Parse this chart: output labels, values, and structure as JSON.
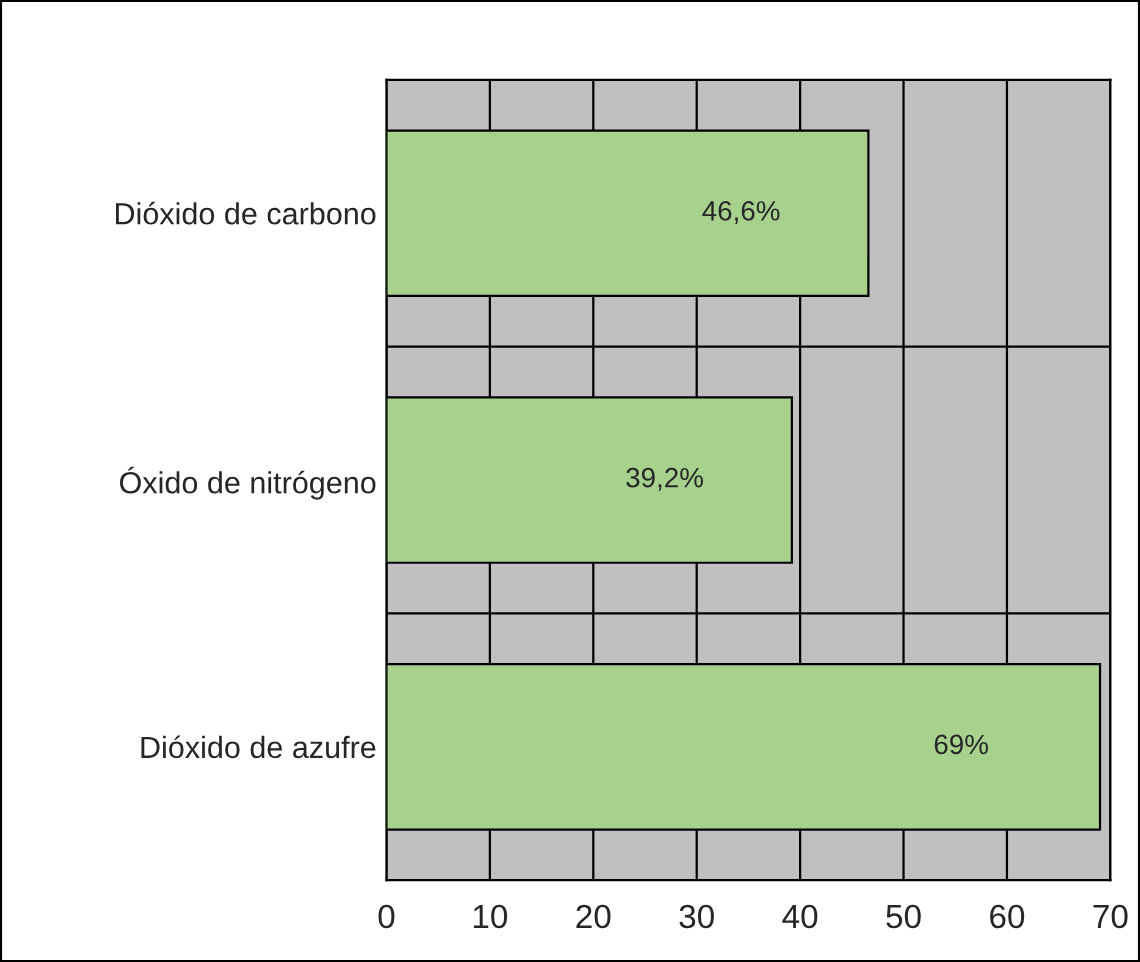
{
  "chart_data": {
    "type": "bar",
    "orientation": "horizontal",
    "categories": [
      "Dióxido de carbono",
      "Óxido de nitrógeno",
      "Dióxido de azufre"
    ],
    "values": [
      46.6,
      39.2,
      69
    ],
    "value_labels": [
      "46,6%",
      "39,2%",
      "69%"
    ],
    "color": "#a9d18e",
    "xlim": [
      0,
      70
    ],
    "xticks": [
      0,
      10,
      20,
      30,
      40,
      50,
      60,
      70
    ],
    "grid": true
  }
}
